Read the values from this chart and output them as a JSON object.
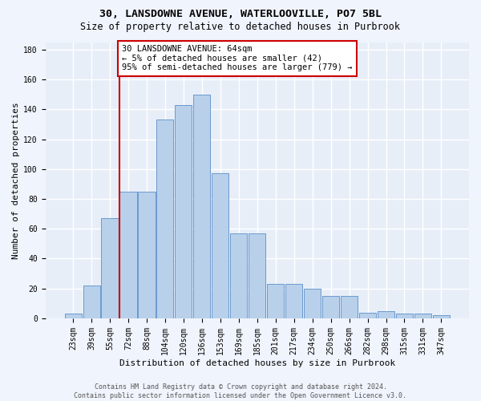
{
  "title1": "30, LANSDOWNE AVENUE, WATERLOOVILLE, PO7 5BL",
  "title2": "Size of property relative to detached houses in Purbrook",
  "xlabel": "Distribution of detached houses by size in Purbrook",
  "ylabel": "Number of detached properties",
  "categories": [
    "23sqm",
    "39sqm",
    "55sqm",
    "72sqm",
    "88sqm",
    "104sqm",
    "120sqm",
    "136sqm",
    "153sqm",
    "169sqm",
    "185sqm",
    "201sqm",
    "217sqm",
    "234sqm",
    "250sqm",
    "266sqm",
    "282sqm",
    "298sqm",
    "315sqm",
    "331sqm",
    "347sqm"
  ],
  "values": [
    3,
    22,
    67,
    85,
    85,
    133,
    143,
    150,
    97,
    57,
    57,
    23,
    23,
    20,
    15,
    15,
    4,
    5,
    3,
    3,
    2
  ],
  "bar_color": "#b8d0ea",
  "bar_edge_color": "#5b8fc9",
  "vline_x": 2.5,
  "vline_color": "#cc0000",
  "annotation_line1": "30 LANSDOWNE AVENUE: 64sqm",
  "annotation_line2": "← 5% of detached houses are smaller (42)",
  "annotation_line3": "95% of semi-detached houses are larger (779) →",
  "annotation_box_color": "#ffffff",
  "annotation_box_edge": "#cc0000",
  "ylim": [
    0,
    185
  ],
  "yticks": [
    0,
    20,
    40,
    60,
    80,
    100,
    120,
    140,
    160,
    180
  ],
  "footer_line1": "Contains HM Land Registry data © Crown copyright and database right 2024.",
  "footer_line2": "Contains public sector information licensed under the Open Government Licence v3.0.",
  "bg_color": "#e8eef8",
  "grid_color": "#ffffff",
  "title1_fontsize": 9.5,
  "title2_fontsize": 8.5,
  "xlabel_fontsize": 8,
  "ylabel_fontsize": 8,
  "tick_fontsize": 7,
  "annotation_fontsize": 7.5,
  "footer_fontsize": 6
}
